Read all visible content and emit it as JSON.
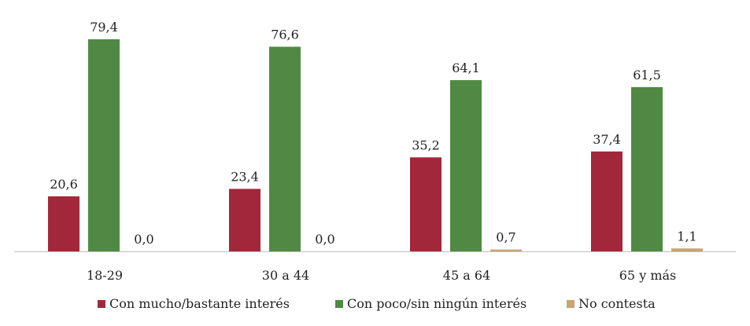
{
  "chart_data": {
    "type": "bar",
    "title": "",
    "xlabel": "",
    "ylabel": "",
    "categories": [
      "18-29",
      "30 a 44",
      "45 a 64",
      "65 y más"
    ],
    "series": [
      {
        "name": "Con mucho/bastante interés",
        "color": "#A2273A",
        "values": [
          20.6,
          23.4,
          35.2,
          37.4
        ],
        "labels": [
          "20,6",
          "23,4",
          "35,2",
          "37,4"
        ]
      },
      {
        "name": "Con poco/sin ningún interés",
        "color": "#508943",
        "values": [
          79.4,
          76.6,
          64.1,
          61.5
        ],
        "labels": [
          "79,4",
          "76,6",
          "64,1",
          "61,5"
        ]
      },
      {
        "name": "No contesta",
        "color": "#C9A470",
        "values": [
          0.0,
          0.0,
          0.7,
          1.1
        ],
        "labels": [
          "0,0",
          "0,0",
          "0,7",
          "1,1"
        ]
      }
    ],
    "ylim": [
      0,
      79.4
    ],
    "grid": false,
    "legend_position": "bottom"
  }
}
